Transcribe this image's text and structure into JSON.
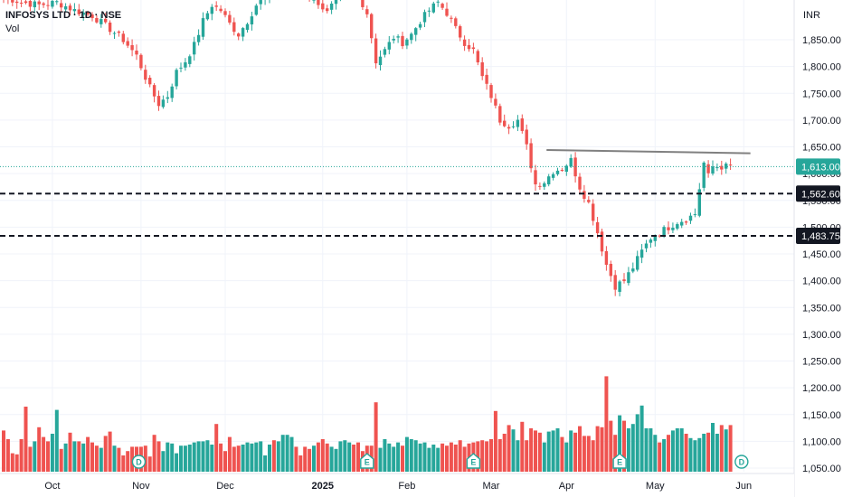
{
  "chart_data": {
    "type": "candlestick",
    "symbol": "INFOSYS LTD · 1D · NSE",
    "indicator_label": "Vol",
    "currency": "INR",
    "ylim": [
      1040,
      1940
    ],
    "price_ticks": [
      "1,850.00",
      "1,800.00",
      "1,750.00",
      "1,700.00",
      "1,650.00",
      "1,600.00",
      "1,550.00",
      "1,500.00",
      "1,450.00",
      "1,400.00",
      "1,350.00",
      "1,300.00",
      "1,250.00",
      "1,200.00",
      "1,150.00",
      "1,100.00",
      "1,050.00"
    ],
    "price_tick_values": [
      1850,
      1800,
      1750,
      1700,
      1650,
      1600,
      1550,
      1500,
      1450,
      1400,
      1350,
      1300,
      1250,
      1200,
      1150,
      1100,
      1050
    ],
    "month_labels": [
      {
        "label": "Oct",
        "day": 11
      },
      {
        "label": "Nov",
        "day": 31
      },
      {
        "label": "Dec",
        "day": 50
      },
      {
        "label": "2025",
        "day": 72
      },
      {
        "label": "Feb",
        "day": 91
      },
      {
        "label": "Mar",
        "day": 110
      },
      {
        "label": "Apr",
        "day": 127
      },
      {
        "label": "May",
        "day": 147
      },
      {
        "label": "Jun",
        "day": 167
      }
    ],
    "last_price": {
      "value": 1613,
      "label": "1,613.00"
    },
    "horizontal_levels": [
      {
        "value": 1562.6,
        "label": "1,562.60"
      },
      {
        "value": 1483.75,
        "label": "1,483.75"
      }
    ],
    "trendline": {
      "from": {
        "day": 122.5,
        "price": 1644
      },
      "to": {
        "day": 168.5,
        "price": 1638
      }
    },
    "event_markers": [
      {
        "letter": "D",
        "day": 30.5,
        "style": "circle"
      },
      {
        "letter": "E",
        "day": 82,
        "style": "flag"
      },
      {
        "letter": "E",
        "day": 106,
        "style": "flag"
      },
      {
        "letter": "E",
        "day": 139,
        "style": "flag"
      },
      {
        "letter": "D",
        "day": 166.5,
        "style": "circle"
      }
    ],
    "price_anchors": [
      [
        0,
        1930
      ],
      [
        4,
        1920
      ],
      [
        8,
        1915
      ],
      [
        12,
        1920
      ],
      [
        16,
        1905
      ],
      [
        20,
        1895
      ],
      [
        24,
        1870
      ],
      [
        27,
        1850
      ],
      [
        30,
        1820
      ],
      [
        33,
        1760
      ],
      [
        35,
        1730
      ],
      [
        37,
        1745
      ],
      [
        39,
        1790
      ],
      [
        41,
        1810
      ],
      [
        43,
        1840
      ],
      [
        45,
        1885
      ],
      [
        47,
        1915
      ],
      [
        49,
        1905
      ],
      [
        51,
        1880
      ],
      [
        53,
        1860
      ],
      [
        55,
        1885
      ],
      [
        57,
        1915
      ],
      [
        60,
        1935
      ],
      [
        64,
        1940
      ],
      [
        68,
        1935
      ],
      [
        71,
        1920
      ],
      [
        73,
        1900
      ],
      [
        75,
        1925
      ],
      [
        77,
        1935
      ],
      [
        80,
        1935
      ],
      [
        82,
        1900
      ],
      [
        84,
        1810
      ],
      [
        86,
        1830
      ],
      [
        88,
        1855
      ],
      [
        90,
        1845
      ],
      [
        92,
        1860
      ],
      [
        94,
        1885
      ],
      [
        96,
        1905
      ],
      [
        98,
        1920
      ],
      [
        100,
        1900
      ],
      [
        102,
        1870
      ],
      [
        104,
        1845
      ],
      [
        106,
        1830
      ],
      [
        108,
        1780
      ],
      [
        110,
        1745
      ],
      [
        112,
        1700
      ],
      [
        114,
        1690
      ],
      [
        116,
        1700
      ],
      [
        118,
        1650
      ],
      [
        120,
        1580
      ],
      [
        122,
        1585
      ],
      [
        124,
        1605
      ],
      [
        126,
        1610
      ],
      [
        128,
        1625
      ],
      [
        130,
        1575
      ],
      [
        132,
        1545
      ],
      [
        134,
        1490
      ],
      [
        136,
        1430
      ],
      [
        138,
        1390
      ],
      [
        140,
        1400
      ],
      [
        142,
        1425
      ],
      [
        144,
        1455
      ],
      [
        146,
        1480
      ],
      [
        148,
        1490
      ],
      [
        150,
        1500
      ],
      [
        152,
        1510
      ],
      [
        154,
        1515
      ],
      [
        156,
        1525
      ],
      [
        158,
        1620
      ],
      [
        159,
        1595
      ],
      [
        160,
        1613
      ]
    ],
    "volume_bars": [
      38,
      30,
      17,
      16,
      30,
      60,
      23,
      28,
      41,
      32,
      28,
      35,
      57,
      21,
      26,
      36,
      28,
      28,
      26,
      32,
      27,
      24,
      22,
      33,
      37,
      24,
      22,
      15,
      19,
      23,
      23,
      23,
      24,
      14,
      34,
      28,
      19,
      27,
      26,
      17,
      24,
      24,
      25,
      27,
      28,
      28,
      29,
      25,
      44,
      26,
      19,
      32,
      23,
      24,
      25,
      27,
      26,
      27,
      28,
      15,
      25,
      29,
      28,
      34,
      34,
      32,
      23,
      15,
      23,
      21,
      24,
      27,
      30,
      26,
      23,
      21,
      28,
      29,
      27,
      25,
      27,
      19,
      24,
      24,
      64,
      22,
      30,
      26,
      23,
      27,
      24,
      32,
      30,
      29,
      26,
      27,
      22,
      25,
      22,
      26,
      24,
      27,
      25,
      29,
      23,
      26,
      27,
      28,
      29,
      28,
      30,
      56,
      30,
      35,
      43,
      39,
      29,
      46,
      29,
      40,
      38,
      36,
      27,
      37,
      38,
      40,
      32,
      27,
      38,
      36,
      42,
      33,
      33,
      29,
      42,
      41,
      88,
      47,
      34,
      52,
      47,
      40,
      44,
      53,
      61,
      40,
      40,
      34,
      27,
      30,
      34,
      38,
      40,
      40,
      35,
      31,
      29,
      31,
      35,
      36,
      45,
      35,
      43,
      39,
      43
    ]
  }
}
